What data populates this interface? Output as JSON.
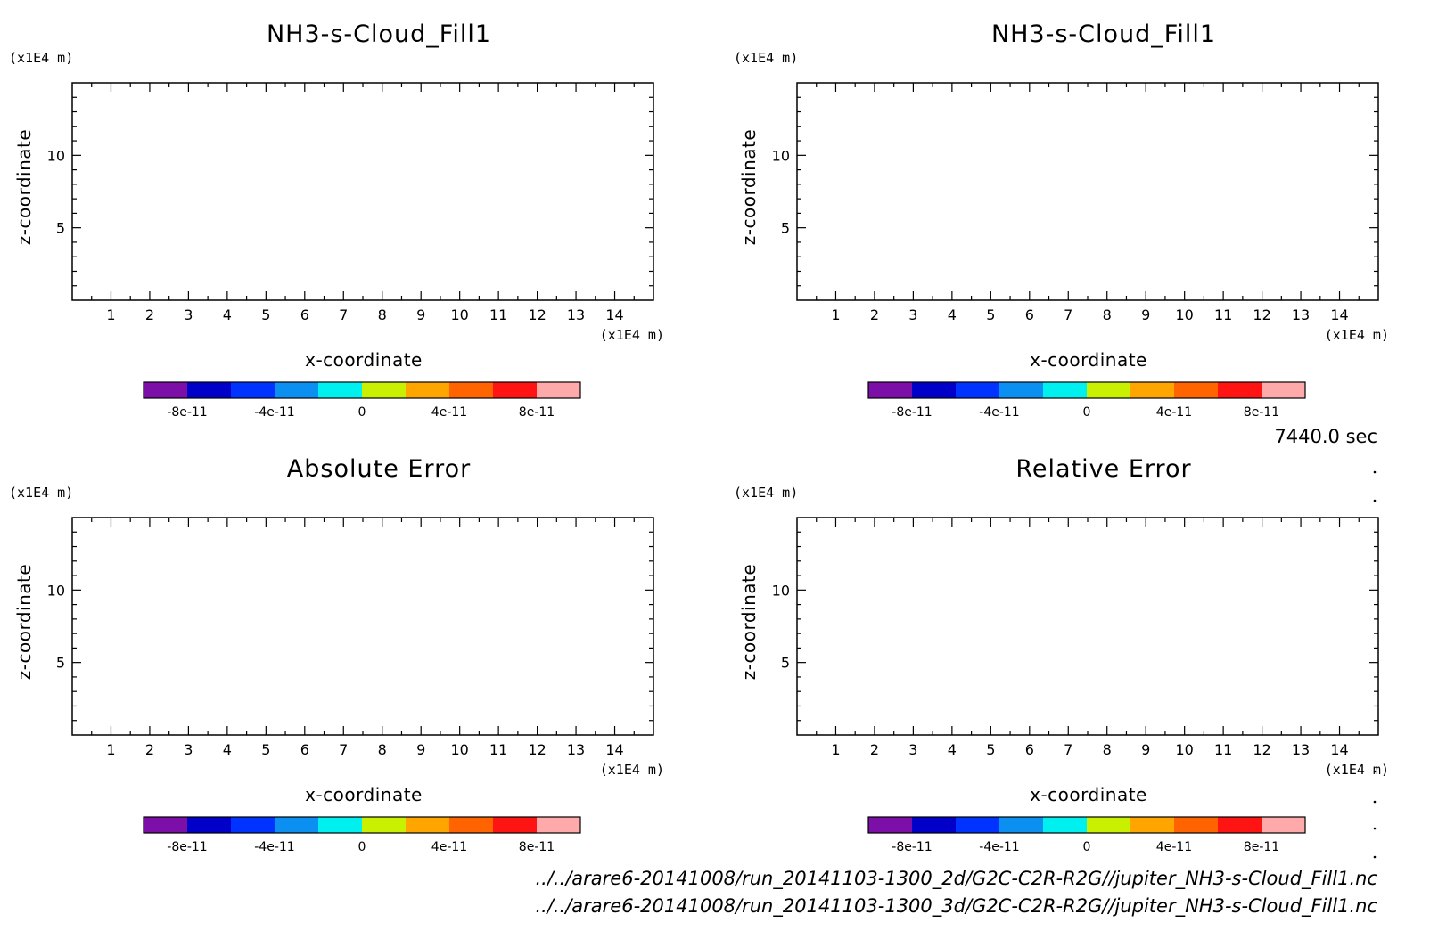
{
  "chart_data": [
    {
      "type": "heatmap",
      "title": "NH3-s-Cloud_Fill1",
      "xlabel": "x-coordinate",
      "ylabel": "z-coordinate",
      "x_unit": "(x1E4 m)",
      "y_unit": "(x1E4 m)",
      "x_ticks": [
        1,
        2,
        3,
        4,
        5,
        6,
        7,
        8,
        9,
        10,
        11,
        12,
        13,
        14
      ],
      "y_ticks": [
        5,
        10
      ],
      "xlim": [
        0,
        15
      ],
      "ylim": [
        0,
        15
      ],
      "values": [],
      "colorbar": {
        "colors": [
          "#7b0fa8",
          "#0000c8",
          "#0033ff",
          "#0b8ff0",
          "#00f0f0",
          "#c8f000",
          "#ffa500",
          "#ff6400",
          "#ff1414",
          "#ffaaaa"
        ],
        "labels": [
          "-8e-11",
          "-4e-11",
          "0",
          "4e-11",
          "8e-11"
        ]
      }
    },
    {
      "type": "heatmap",
      "title": "NH3-s-Cloud_Fill1",
      "xlabel": "x-coordinate",
      "ylabel": "z-coordinate",
      "x_unit": "(x1E4 m)",
      "y_unit": "(x1E4 m)",
      "x_ticks": [
        1,
        2,
        3,
        4,
        5,
        6,
        7,
        8,
        9,
        10,
        11,
        12,
        13,
        14
      ],
      "y_ticks": [
        5,
        10
      ],
      "xlim": [
        0,
        15
      ],
      "ylim": [
        0,
        15
      ],
      "values": [],
      "colorbar": {
        "colors": [
          "#7b0fa8",
          "#0000c8",
          "#0033ff",
          "#0b8ff0",
          "#00f0f0",
          "#c8f000",
          "#ffa500",
          "#ff6400",
          "#ff1414",
          "#ffaaaa"
        ],
        "labels": [
          "-8e-11",
          "-4e-11",
          "0",
          "4e-11",
          "8e-11"
        ]
      }
    },
    {
      "type": "heatmap",
      "title": "Absolute Error",
      "xlabel": "x-coordinate",
      "ylabel": "z-coordinate",
      "x_unit": "(x1E4 m)",
      "y_unit": "(x1E4 m)",
      "x_ticks": [
        1,
        2,
        3,
        4,
        5,
        6,
        7,
        8,
        9,
        10,
        11,
        12,
        13,
        14
      ],
      "y_ticks": [
        5,
        10
      ],
      "xlim": [
        0,
        15
      ],
      "ylim": [
        0,
        15
      ],
      "values": [],
      "colorbar": {
        "colors": [
          "#7b0fa8",
          "#0000c8",
          "#0033ff",
          "#0b8ff0",
          "#00f0f0",
          "#c8f000",
          "#ffa500",
          "#ff6400",
          "#ff1414",
          "#ffaaaa"
        ],
        "labels": [
          "-8e-11",
          "-4e-11",
          "0",
          "4e-11",
          "8e-11"
        ]
      }
    },
    {
      "type": "heatmap",
      "title": "Relative Error",
      "xlabel": "x-coordinate",
      "ylabel": "z-coordinate",
      "x_unit": "(x1E4 m)",
      "y_unit": "(x1E4 m)",
      "x_ticks": [
        1,
        2,
        3,
        4,
        5,
        6,
        7,
        8,
        9,
        10,
        11,
        12,
        13,
        14
      ],
      "y_ticks": [
        5,
        10
      ],
      "xlim": [
        0,
        15
      ],
      "ylim": [
        0,
        15
      ],
      "values": [],
      "colorbar": {
        "colors": [
          "#7b0fa8",
          "#0000c8",
          "#0033ff",
          "#0b8ff0",
          "#00f0f0",
          "#c8f000",
          "#ffa500",
          "#ff6400",
          "#ff1414",
          "#ffaaaa"
        ],
        "labels": [
          "-8e-11",
          "-4e-11",
          "0",
          "4e-11",
          "8e-11"
        ]
      }
    }
  ],
  "time_label": "7440.0 sec",
  "files": [
    "../../arare6-20141008/run_20141103-1300_2d/G2C-C2R-R2G//jupiter_NH3-s-Cloud_Fill1.nc",
    "../../arare6-20141008/run_20141103-1300_3d/G2C-C2R-R2G//jupiter_NH3-s-Cloud_Fill1.nc"
  ]
}
